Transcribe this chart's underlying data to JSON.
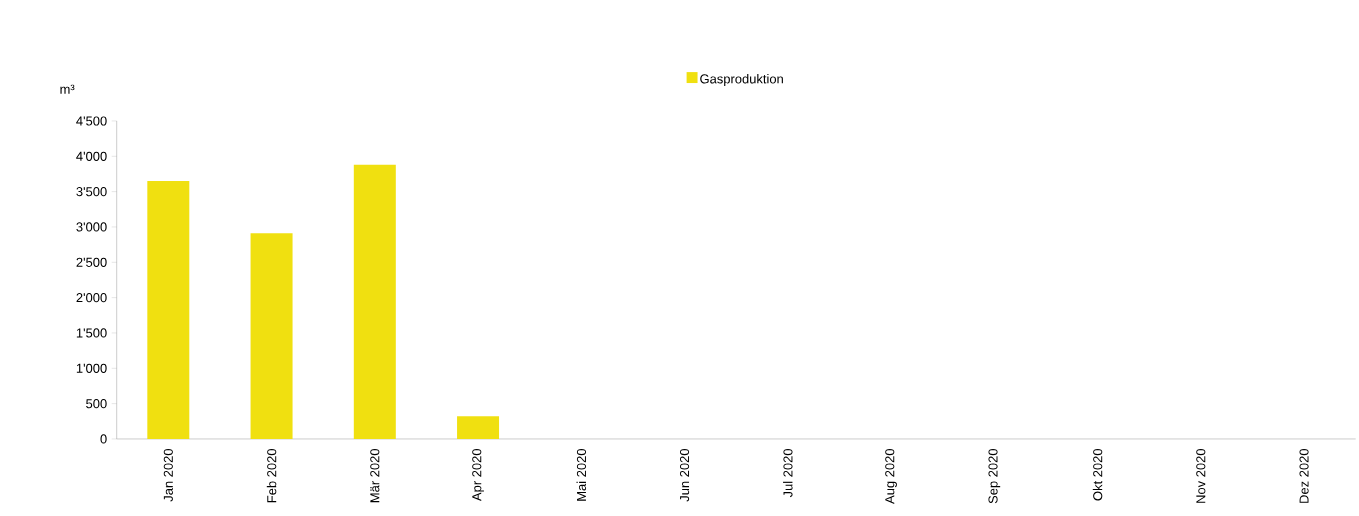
{
  "chart_data": {
    "type": "bar",
    "ylabel": "m³",
    "legend": "top",
    "categories": [
      "Jan 2020",
      "Feb 2020",
      "Mär 2020",
      "Apr 2020",
      "Mai 2020",
      "Jun 2020",
      "Jul 2020",
      "Aug 2020",
      "Sep 2020",
      "Okt 2020",
      "Nov 2020",
      "Dez 2020"
    ],
    "series": [
      {
        "name": "Gasproduktion",
        "color": "#f0e010",
        "values": [
          3650,
          2910,
          3880,
          320,
          null,
          null,
          null,
          null,
          null,
          null,
          null,
          null
        ]
      }
    ],
    "ylim": [
      0,
      4500
    ],
    "yticks": [
      0,
      500,
      {
        "value": 1000,
        "label": "1'000"
      },
      {
        "value": 1500,
        "label": "1'500"
      },
      {
        "value": 2000,
        "label": "2'000"
      },
      {
        "value": 2500,
        "label": "2'500"
      },
      {
        "value": 3000,
        "label": "3'000"
      },
      {
        "value": 3500,
        "label": "3'500"
      },
      {
        "value": 4000,
        "label": "4'000"
      },
      {
        "value": 4500,
        "label": "4'500"
      }
    ],
    "grid": false
  }
}
